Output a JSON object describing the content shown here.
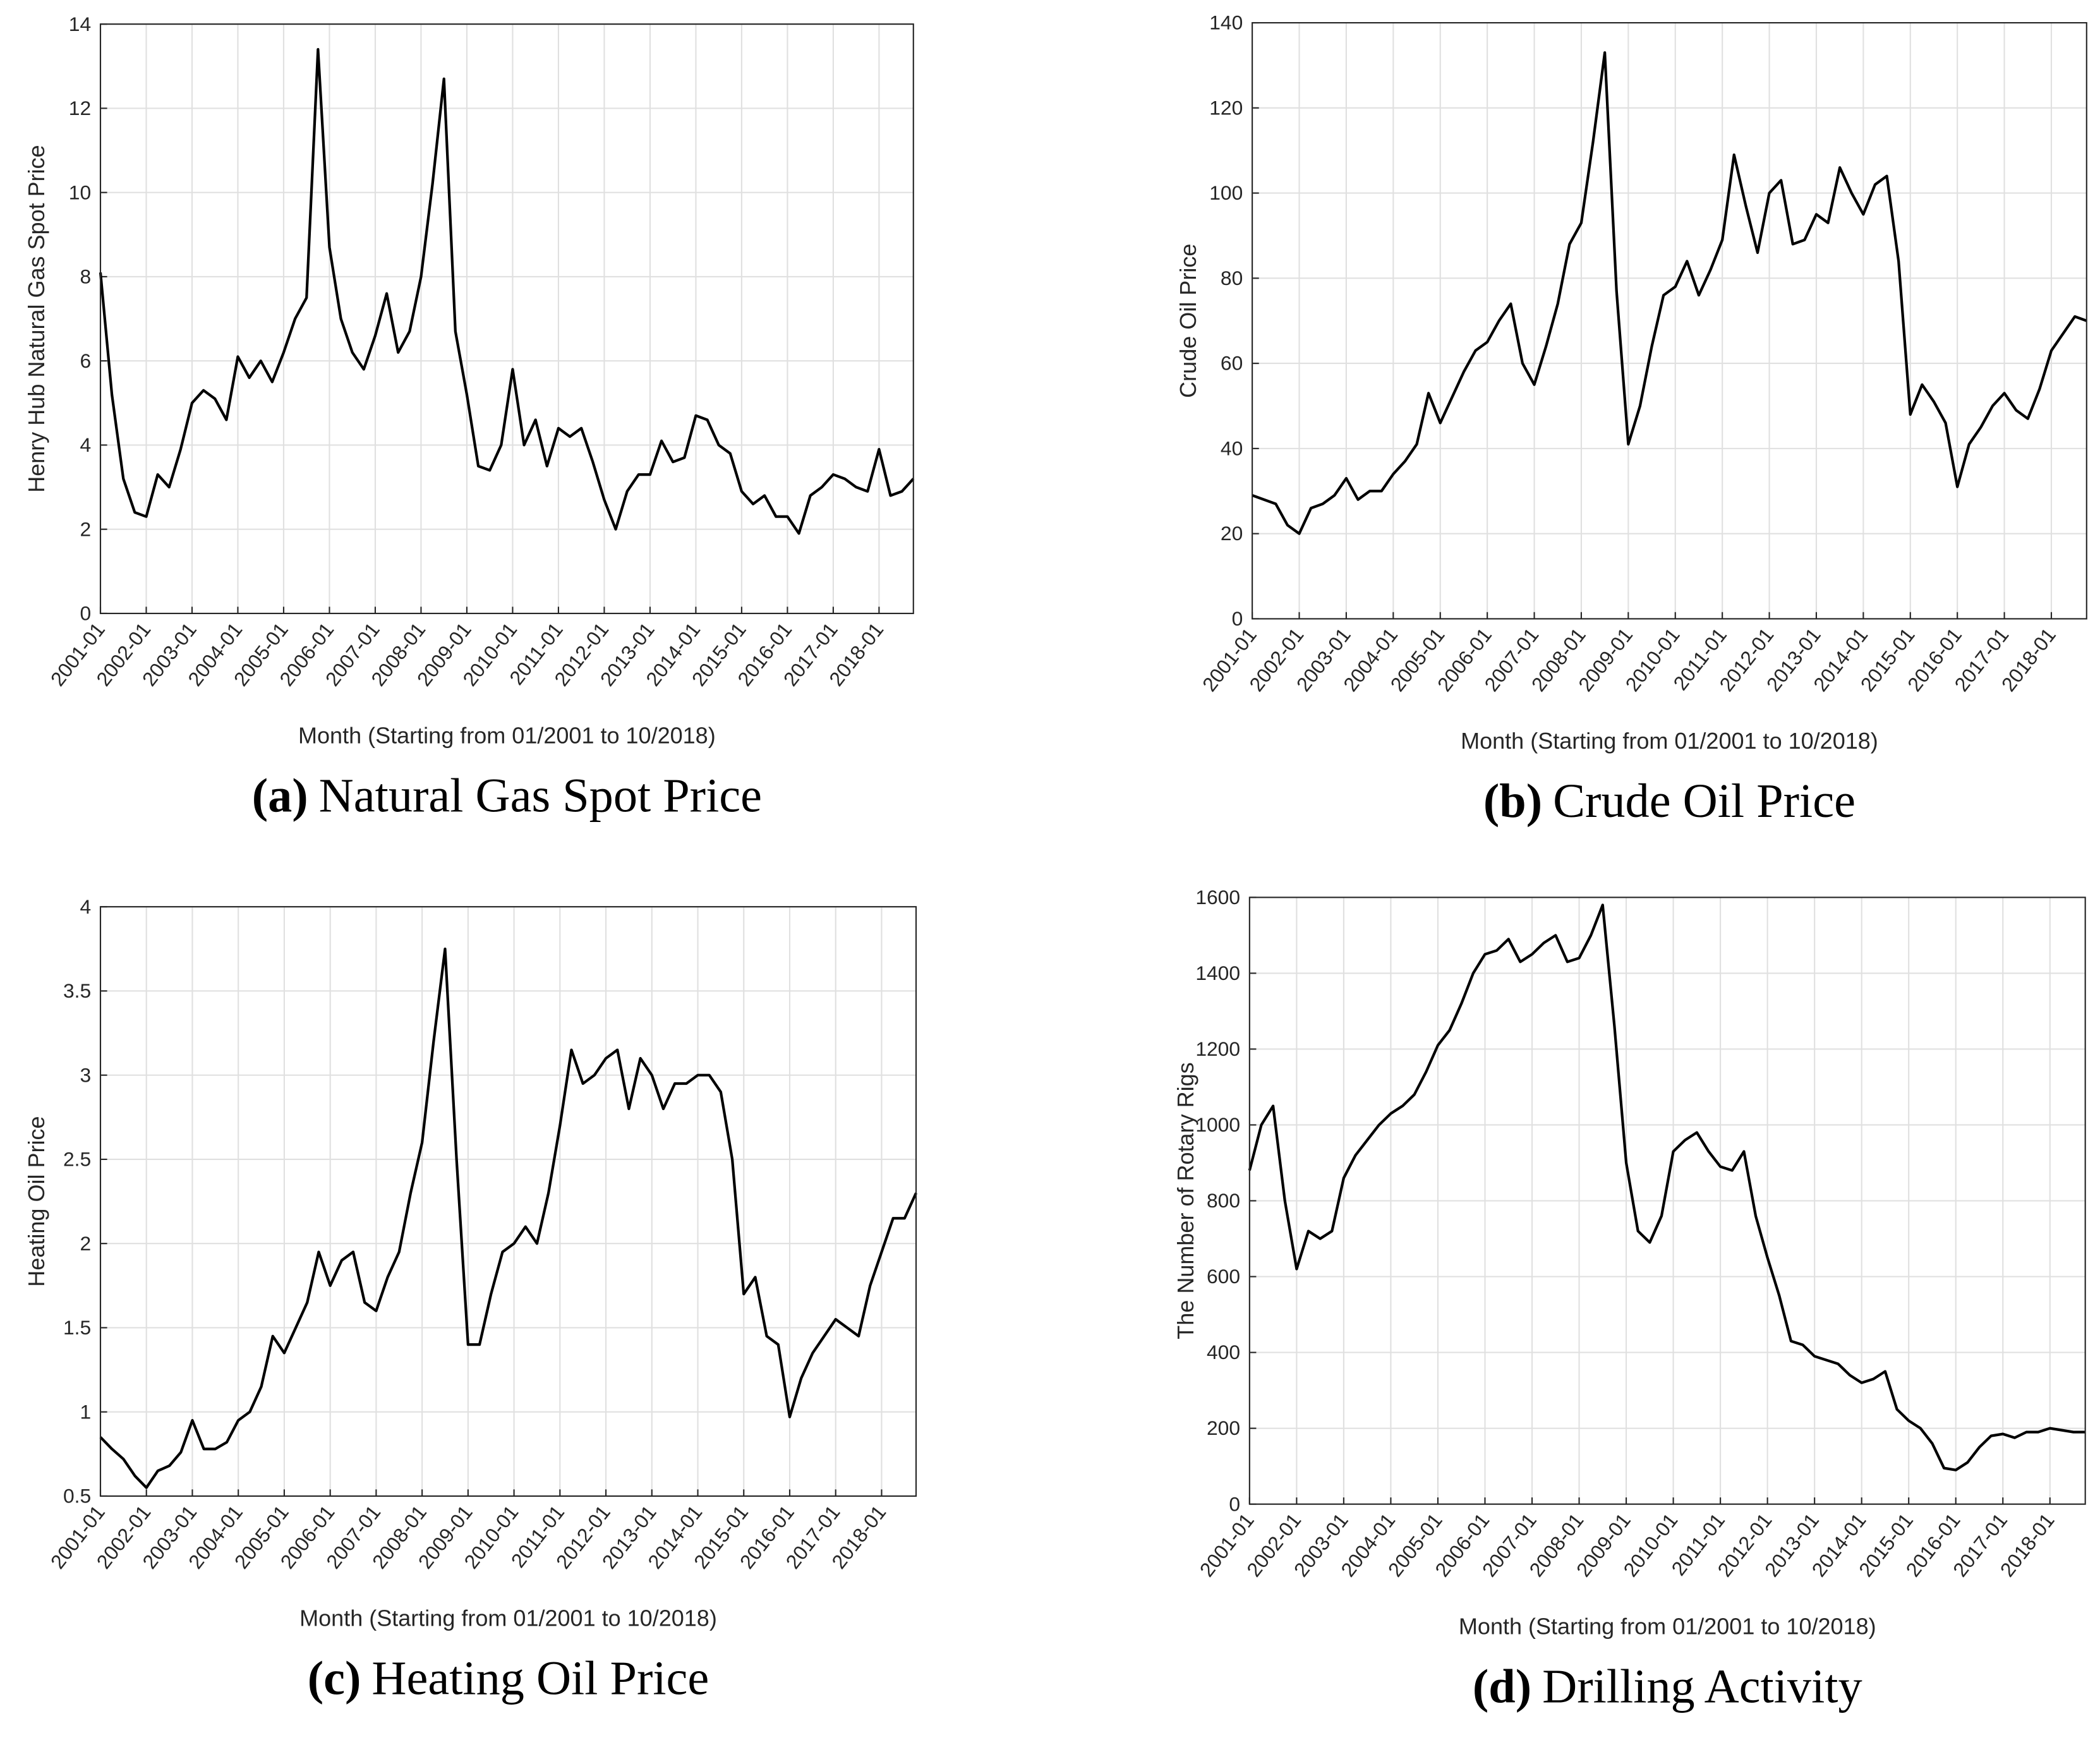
{
  "chart_data": [
    {
      "type": "line",
      "caption_label": "(a)",
      "caption": "Natural Gas Spot Price",
      "xlabel": "Month (Starting from 01/2001 to 10/2018)",
      "ylabel": "Henry Hub Natural Gas Spot Price",
      "color": "#000000",
      "grid": true,
      "x": [
        "2001-01",
        "2001-04",
        "2001-07",
        "2001-10",
        "2002-01",
        "2002-04",
        "2002-07",
        "2002-10",
        "2003-01",
        "2003-04",
        "2003-07",
        "2003-10",
        "2004-01",
        "2004-04",
        "2004-07",
        "2004-10",
        "2005-01",
        "2005-04",
        "2005-07",
        "2005-10",
        "2006-01",
        "2006-04",
        "2006-07",
        "2006-10",
        "2007-01",
        "2007-04",
        "2007-07",
        "2007-10",
        "2008-01",
        "2008-04",
        "2008-07",
        "2008-10",
        "2009-01",
        "2009-04",
        "2009-07",
        "2009-10",
        "2010-01",
        "2010-04",
        "2010-07",
        "2010-10",
        "2011-01",
        "2011-04",
        "2011-07",
        "2011-10",
        "2012-01",
        "2012-04",
        "2012-07",
        "2012-10",
        "2013-01",
        "2013-04",
        "2013-07",
        "2013-10",
        "2014-01",
        "2014-04",
        "2014-07",
        "2014-10",
        "2015-01",
        "2015-04",
        "2015-07",
        "2015-10",
        "2016-01",
        "2016-04",
        "2016-07",
        "2016-10",
        "2017-01",
        "2017-04",
        "2017-07",
        "2017-10",
        "2018-01",
        "2018-04",
        "2018-07",
        "2018-10"
      ],
      "values": [
        8.1,
        5.2,
        3.2,
        2.4,
        2.3,
        3.3,
        3.0,
        3.9,
        5.0,
        5.3,
        5.1,
        4.6,
        6.1,
        5.6,
        6.0,
        5.5,
        6.2,
        7.0,
        7.5,
        13.4,
        8.7,
        7.0,
        6.2,
        5.8,
        6.6,
        7.6,
        6.2,
        6.7,
        8.0,
        10.2,
        12.7,
        6.7,
        5.2,
        3.5,
        3.4,
        4.0,
        5.8,
        4.0,
        4.6,
        3.5,
        4.4,
        4.2,
        4.4,
        3.6,
        2.7,
        2.0,
        2.9,
        3.3,
        3.3,
        4.1,
        3.6,
        3.7,
        4.7,
        4.6,
        4.0,
        3.8,
        2.9,
        2.6,
        2.8,
        2.3,
        2.3,
        1.9,
        2.8,
        3.0,
        3.3,
        3.2,
        3.0,
        2.9,
        3.9,
        2.8,
        2.9,
        3.2
      ],
      "xlim": [
        "2001-01",
        "2018-10"
      ],
      "xticks": [
        "2001-01",
        "2002-01",
        "2003-01",
        "2004-01",
        "2005-01",
        "2006-01",
        "2007-01",
        "2008-01",
        "2009-01",
        "2010-01",
        "2011-01",
        "2012-01",
        "2013-01",
        "2014-01",
        "2015-01",
        "2016-01",
        "2017-01",
        "2018-01"
      ],
      "ylim": [
        0,
        14
      ],
      "yticks": [
        0,
        2,
        4,
        6,
        8,
        10,
        12,
        14
      ]
    },
    {
      "type": "line",
      "caption_label": "(b)",
      "caption": "Crude Oil Price",
      "xlabel": "Month (Starting from 01/2001 to 10/2018)",
      "ylabel": "Crude Oil Price",
      "color": "#000000",
      "grid": true,
      "x": [
        "2001-01",
        "2001-04",
        "2001-07",
        "2001-10",
        "2002-01",
        "2002-04",
        "2002-07",
        "2002-10",
        "2003-01",
        "2003-04",
        "2003-07",
        "2003-10",
        "2004-01",
        "2004-04",
        "2004-07",
        "2004-10",
        "2005-01",
        "2005-04",
        "2005-07",
        "2005-10",
        "2006-01",
        "2006-04",
        "2006-07",
        "2006-10",
        "2007-01",
        "2007-04",
        "2007-07",
        "2007-10",
        "2008-01",
        "2008-04",
        "2008-07",
        "2008-10",
        "2009-01",
        "2009-04",
        "2009-07",
        "2009-10",
        "2010-01",
        "2010-04",
        "2010-07",
        "2010-10",
        "2011-01",
        "2011-04",
        "2011-07",
        "2011-10",
        "2012-01",
        "2012-04",
        "2012-07",
        "2012-10",
        "2013-01",
        "2013-04",
        "2013-07",
        "2013-10",
        "2014-01",
        "2014-04",
        "2014-07",
        "2014-10",
        "2015-01",
        "2015-04",
        "2015-07",
        "2015-10",
        "2016-01",
        "2016-04",
        "2016-07",
        "2016-10",
        "2017-01",
        "2017-04",
        "2017-07",
        "2017-10",
        "2018-01",
        "2018-04",
        "2018-07",
        "2018-10"
      ],
      "values": [
        29,
        28,
        27,
        22,
        20,
        26,
        27,
        29,
        33,
        28,
        30,
        30,
        34,
        37,
        41,
        53,
        46,
        52,
        58,
        63,
        65,
        70,
        74,
        60,
        55,
        64,
        74,
        88,
        93,
        112,
        133,
        77,
        41,
        50,
        64,
        76,
        78,
        84,
        76,
        82,
        89,
        109,
        97,
        86,
        100,
        103,
        88,
        89,
        95,
        93,
        106,
        100,
        95,
        102,
        104,
        84,
        48,
        55,
        51,
        46,
        31,
        41,
        45,
        50,
        53,
        49,
        47,
        54,
        63,
        67,
        71,
        70
      ],
      "xlim": [
        "2001-01",
        "2018-10"
      ],
      "xticks": [
        "2001-01",
        "2002-01",
        "2003-01",
        "2004-01",
        "2005-01",
        "2006-01",
        "2007-01",
        "2008-01",
        "2009-01",
        "2010-01",
        "2011-01",
        "2012-01",
        "2013-01",
        "2014-01",
        "2015-01",
        "2016-01",
        "2017-01",
        "2018-01"
      ],
      "ylim": [
        0,
        140
      ],
      "yticks": [
        0,
        20,
        40,
        60,
        80,
        100,
        120,
        140
      ]
    },
    {
      "type": "line",
      "caption_label": "(c)",
      "caption": "Heating Oil Price",
      "xlabel": "Month (Starting from 01/2001 to 10/2018)",
      "ylabel": "Heating Oil Price",
      "color": "#000000",
      "grid": true,
      "x": [
        "2001-01",
        "2001-04",
        "2001-07",
        "2001-10",
        "2002-01",
        "2002-04",
        "2002-07",
        "2002-10",
        "2003-01",
        "2003-04",
        "2003-07",
        "2003-10",
        "2004-01",
        "2004-04",
        "2004-07",
        "2004-10",
        "2005-01",
        "2005-04",
        "2005-07",
        "2005-10",
        "2006-01",
        "2006-04",
        "2006-07",
        "2006-10",
        "2007-01",
        "2007-04",
        "2007-07",
        "2007-10",
        "2008-01",
        "2008-04",
        "2008-07",
        "2008-10",
        "2009-01",
        "2009-04",
        "2009-07",
        "2009-10",
        "2010-01",
        "2010-04",
        "2010-07",
        "2010-10",
        "2011-01",
        "2011-04",
        "2011-07",
        "2011-10",
        "2012-01",
        "2012-04",
        "2012-07",
        "2012-10",
        "2013-01",
        "2013-04",
        "2013-07",
        "2013-10",
        "2014-01",
        "2014-04",
        "2014-07",
        "2014-10",
        "2015-01",
        "2015-04",
        "2015-07",
        "2015-10",
        "2016-01",
        "2016-04",
        "2016-07",
        "2016-10",
        "2017-01",
        "2017-04",
        "2017-07",
        "2017-10",
        "2018-01",
        "2018-04",
        "2018-07",
        "2018-10"
      ],
      "values": [
        0.85,
        0.78,
        0.72,
        0.62,
        0.55,
        0.65,
        0.68,
        0.76,
        0.95,
        0.78,
        0.78,
        0.82,
        0.95,
        1.0,
        1.15,
        1.45,
        1.35,
        1.5,
        1.65,
        1.95,
        1.75,
        1.9,
        1.95,
        1.65,
        1.6,
        1.8,
        1.95,
        2.3,
        2.6,
        3.2,
        3.75,
        2.5,
        1.4,
        1.4,
        1.7,
        1.95,
        2.0,
        2.1,
        2.0,
        2.3,
        2.7,
        3.15,
        2.95,
        3.0,
        3.1,
        3.15,
        2.8,
        3.1,
        3.0,
        2.8,
        2.95,
        2.95,
        3.0,
        3.0,
        2.9,
        2.5,
        1.7,
        1.8,
        1.45,
        1.4,
        0.97,
        1.2,
        1.35,
        1.45,
        1.55,
        1.5,
        1.45,
        1.75,
        1.95,
        2.15,
        2.15,
        2.3
      ],
      "xlim": [
        "2001-01",
        "2018-10"
      ],
      "xticks": [
        "2001-01",
        "2002-01",
        "2003-01",
        "2004-01",
        "2005-01",
        "2006-01",
        "2007-01",
        "2008-01",
        "2009-01",
        "2010-01",
        "2011-01",
        "2012-01",
        "2013-01",
        "2014-01",
        "2015-01",
        "2016-01",
        "2017-01",
        "2018-01"
      ],
      "ylim": [
        0.5,
        4
      ],
      "yticks": [
        0.5,
        1,
        1.5,
        2,
        2.5,
        3,
        3.5,
        4
      ]
    },
    {
      "type": "line",
      "caption_label": "(d)",
      "caption": "Drilling Activity",
      "xlabel": "Month (Starting from 01/2001 to 10/2018)",
      "ylabel": "The Number of Rotary Rigs",
      "color": "#000000",
      "grid": true,
      "x": [
        "2001-01",
        "2001-04",
        "2001-07",
        "2001-10",
        "2002-01",
        "2002-04",
        "2002-07",
        "2002-10",
        "2003-01",
        "2003-04",
        "2003-07",
        "2003-10",
        "2004-01",
        "2004-04",
        "2004-07",
        "2004-10",
        "2005-01",
        "2005-04",
        "2005-07",
        "2005-10",
        "2006-01",
        "2006-04",
        "2006-07",
        "2006-10",
        "2007-01",
        "2007-04",
        "2007-07",
        "2007-10",
        "2008-01",
        "2008-04",
        "2008-07",
        "2008-10",
        "2009-01",
        "2009-04",
        "2009-07",
        "2009-10",
        "2010-01",
        "2010-04",
        "2010-07",
        "2010-10",
        "2011-01",
        "2011-04",
        "2011-07",
        "2011-10",
        "2012-01",
        "2012-04",
        "2012-07",
        "2012-10",
        "2013-01",
        "2013-04",
        "2013-07",
        "2013-10",
        "2014-01",
        "2014-04",
        "2014-07",
        "2014-10",
        "2015-01",
        "2015-04",
        "2015-07",
        "2015-10",
        "2016-01",
        "2016-04",
        "2016-07",
        "2016-10",
        "2017-01",
        "2017-04",
        "2017-07",
        "2017-10",
        "2018-01",
        "2018-04",
        "2018-07",
        "2018-10"
      ],
      "values": [
        880,
        1000,
        1050,
        800,
        620,
        720,
        700,
        720,
        860,
        920,
        960,
        1000,
        1030,
        1050,
        1080,
        1140,
        1210,
        1250,
        1320,
        1400,
        1450,
        1460,
        1490,
        1430,
        1450,
        1480,
        1500,
        1430,
        1440,
        1500,
        1580,
        1260,
        900,
        720,
        690,
        760,
        930,
        960,
        980,
        930,
        890,
        880,
        930,
        760,
        650,
        550,
        430,
        420,
        390,
        380,
        370,
        340,
        320,
        330,
        350,
        250,
        220,
        200,
        160,
        95,
        90,
        110,
        150,
        180,
        185,
        175,
        190,
        190,
        200,
        195,
        190,
        190
      ],
      "xlim": [
        "2001-01",
        "2018-10"
      ],
      "xticks": [
        "2001-01",
        "2002-01",
        "2003-01",
        "2004-01",
        "2005-01",
        "2006-01",
        "2007-01",
        "2008-01",
        "2009-01",
        "2010-01",
        "2011-01",
        "2012-01",
        "2013-01",
        "2014-01",
        "2015-01",
        "2016-01",
        "2017-01",
        "2018-01"
      ],
      "ylim": [
        0,
        1600
      ],
      "yticks": [
        0,
        200,
        400,
        600,
        800,
        1000,
        1200,
        1400,
        1600
      ]
    }
  ]
}
